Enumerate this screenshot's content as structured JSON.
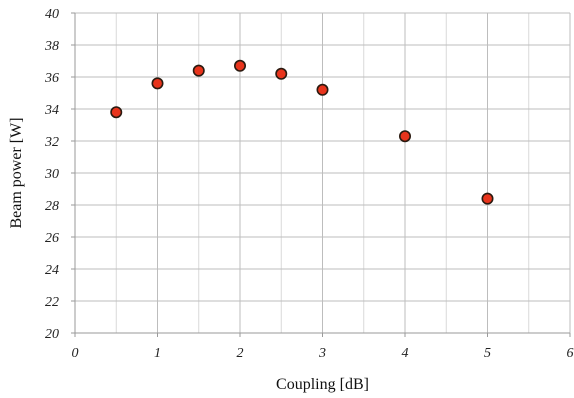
{
  "chart_data": {
    "type": "scatter",
    "title": "",
    "xlabel": "Coupling [dB]",
    "ylabel": "Beam power [W]",
    "xlim": [
      0,
      6
    ],
    "ylim": [
      20,
      40
    ],
    "x_ticks": [
      0,
      1,
      2,
      3,
      4,
      5,
      6
    ],
    "y_ticks": [
      20,
      22,
      24,
      26,
      28,
      30,
      32,
      34,
      36,
      38,
      40
    ],
    "grid": {
      "major": true,
      "minor_x": true,
      "minor_x_step": 0.5
    },
    "marker": {
      "shape": "circle",
      "fill": "#e8341c",
      "edge": "#2a1a10"
    },
    "colors": {
      "grid": "#bdbdbd",
      "axis": "#9a9a9a"
    },
    "series": [
      {
        "x": [
          0.5,
          1.0,
          1.5,
          2.0,
          2.5,
          3.0,
          4.0,
          5.0
        ],
        "y": [
          33.8,
          35.6,
          36.4,
          36.7,
          36.2,
          35.2,
          32.3,
          28.4
        ]
      }
    ]
  }
}
